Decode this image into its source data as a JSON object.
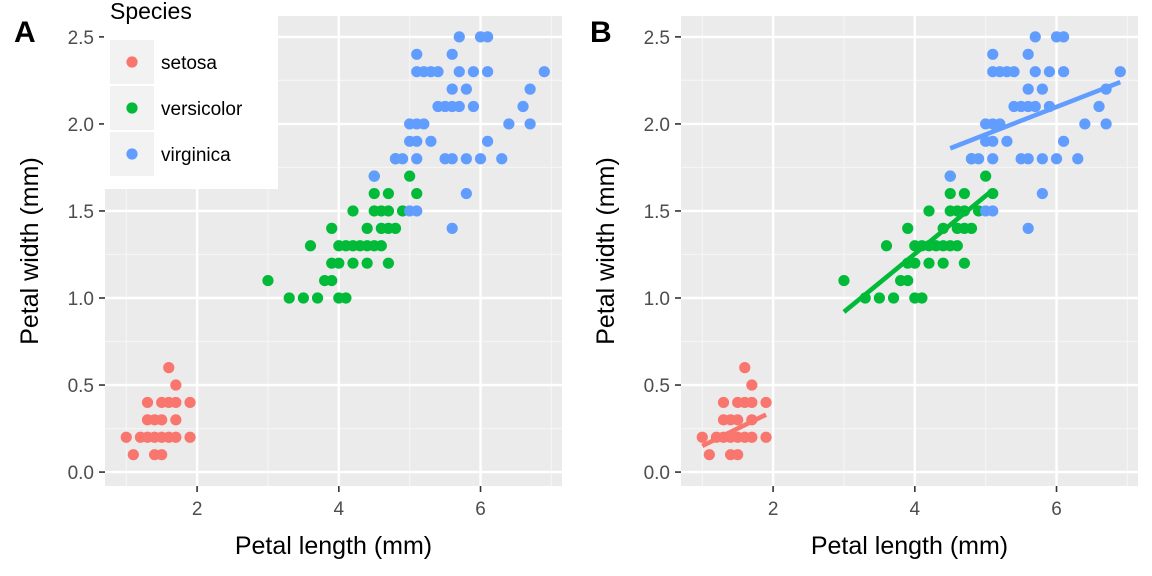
{
  "chart_data": [
    {
      "type": "scatter",
      "panel_tag": "A",
      "xlabel": "Petal length (mm)",
      "ylabel": "Petal width (mm)",
      "xlim": [
        0.7,
        7.15
      ],
      "ylim": [
        -0.08,
        2.62
      ],
      "xticks": [
        2,
        4,
        6
      ],
      "yticks": [
        0.0,
        0.5,
        1.0,
        1.5,
        2.0,
        2.5
      ],
      "xtick_labels": [
        "2",
        "4",
        "6"
      ],
      "ytick_labels": [
        "0.0",
        "0.5",
        "1.0",
        "1.5",
        "2.0",
        "2.5"
      ],
      "grid": true,
      "legend": {
        "title": "Species",
        "placement": "top-left",
        "entries": [
          "setosa",
          "versicolor",
          "virginica"
        ]
      },
      "series": [
        {
          "name": "setosa",
          "color": "#F8766D",
          "points": [
            [
              1.0,
              0.2
            ],
            [
              1.1,
              0.1
            ],
            [
              1.2,
              0.2
            ],
            [
              1.3,
              0.2
            ],
            [
              1.3,
              0.3
            ],
            [
              1.3,
              0.4
            ],
            [
              1.4,
              0.1
            ],
            [
              1.4,
              0.2
            ],
            [
              1.4,
              0.3
            ],
            [
              1.5,
              0.1
            ],
            [
              1.5,
              0.2
            ],
            [
              1.5,
              0.3
            ],
            [
              1.5,
              0.4
            ],
            [
              1.6,
              0.2
            ],
            [
              1.6,
              0.4
            ],
            [
              1.6,
              0.6
            ],
            [
              1.7,
              0.2
            ],
            [
              1.7,
              0.3
            ],
            [
              1.7,
              0.4
            ],
            [
              1.7,
              0.5
            ],
            [
              1.9,
              0.2
            ],
            [
              1.9,
              0.4
            ]
          ]
        },
        {
          "name": "versicolor",
          "color": "#00BA38",
          "points": [
            [
              3.0,
              1.1
            ],
            [
              3.3,
              1.0
            ],
            [
              3.5,
              1.0
            ],
            [
              3.6,
              1.3
            ],
            [
              3.7,
              1.0
            ],
            [
              3.8,
              1.1
            ],
            [
              3.9,
              1.1
            ],
            [
              3.9,
              1.2
            ],
            [
              3.9,
              1.4
            ],
            [
              4.0,
              1.0
            ],
            [
              4.0,
              1.2
            ],
            [
              4.0,
              1.3
            ],
            [
              4.1,
              1.0
            ],
            [
              4.1,
              1.3
            ],
            [
              4.2,
              1.2
            ],
            [
              4.2,
              1.3
            ],
            [
              4.2,
              1.5
            ],
            [
              4.3,
              1.3
            ],
            [
              4.4,
              1.2
            ],
            [
              4.4,
              1.3
            ],
            [
              4.4,
              1.4
            ],
            [
              4.5,
              1.3
            ],
            [
              4.5,
              1.5
            ],
            [
              4.5,
              1.6
            ],
            [
              4.5,
              1.7
            ],
            [
              4.6,
              1.3
            ],
            [
              4.6,
              1.4
            ],
            [
              4.6,
              1.5
            ],
            [
              4.7,
              1.2
            ],
            [
              4.7,
              1.4
            ],
            [
              4.7,
              1.5
            ],
            [
              4.7,
              1.6
            ],
            [
              4.8,
              1.4
            ],
            [
              4.8,
              1.8
            ],
            [
              4.9,
              1.5
            ],
            [
              5.0,
              1.7
            ],
            [
              5.1,
              1.6
            ]
          ]
        },
        {
          "name": "virginica",
          "color": "#619CFF",
          "points": [
            [
              4.5,
              1.7
            ],
            [
              4.8,
              1.8
            ],
            [
              4.9,
              1.8
            ],
            [
              5.0,
              1.5
            ],
            [
              5.0,
              1.9
            ],
            [
              5.0,
              2.0
            ],
            [
              5.1,
              1.5
            ],
            [
              5.1,
              1.8
            ],
            [
              5.1,
              1.9
            ],
            [
              5.1,
              2.0
            ],
            [
              5.1,
              2.3
            ],
            [
              5.1,
              2.4
            ],
            [
              5.2,
              2.0
            ],
            [
              5.2,
              2.3
            ],
            [
              5.3,
              1.9
            ],
            [
              5.3,
              2.3
            ],
            [
              5.4,
              2.1
            ],
            [
              5.4,
              2.3
            ],
            [
              5.5,
              1.8
            ],
            [
              5.5,
              2.1
            ],
            [
              5.6,
              1.4
            ],
            [
              5.6,
              1.8
            ],
            [
              5.6,
              2.1
            ],
            [
              5.6,
              2.2
            ],
            [
              5.6,
              2.4
            ],
            [
              5.7,
              2.1
            ],
            [
              5.7,
              2.3
            ],
            [
              5.7,
              2.5
            ],
            [
              5.8,
              1.6
            ],
            [
              5.8,
              1.8
            ],
            [
              5.8,
              2.2
            ],
            [
              5.9,
              2.1
            ],
            [
              5.9,
              2.3
            ],
            [
              6.0,
              1.8
            ],
            [
              6.0,
              2.5
            ],
            [
              6.1,
              1.9
            ],
            [
              6.1,
              2.3
            ],
            [
              6.1,
              2.5
            ],
            [
              6.3,
              1.8
            ],
            [
              6.4,
              2.0
            ],
            [
              6.6,
              2.1
            ],
            [
              6.7,
              2.0
            ],
            [
              6.7,
              2.2
            ],
            [
              6.9,
              2.3
            ]
          ]
        }
      ]
    },
    {
      "type": "scatter",
      "panel_tag": "B",
      "xlabel": "Petal length (mm)",
      "ylabel": "Petal width (mm)",
      "xlim": [
        0.7,
        7.15
      ],
      "ylim": [
        -0.08,
        2.62
      ],
      "xticks": [
        2,
        4,
        6
      ],
      "yticks": [
        0.0,
        0.5,
        1.0,
        1.5,
        2.0,
        2.5
      ],
      "xtick_labels": [
        "2",
        "4",
        "6"
      ],
      "ytick_labels": [
        "0.0",
        "0.5",
        "1.0",
        "1.5",
        "2.0",
        "2.5"
      ],
      "grid": true,
      "series": [
        {
          "name": "setosa",
          "color": "#F8766D",
          "points": [
            [
              1.0,
              0.2
            ],
            [
              1.1,
              0.1
            ],
            [
              1.2,
              0.2
            ],
            [
              1.3,
              0.2
            ],
            [
              1.3,
              0.3
            ],
            [
              1.3,
              0.4
            ],
            [
              1.4,
              0.1
            ],
            [
              1.4,
              0.2
            ],
            [
              1.4,
              0.3
            ],
            [
              1.5,
              0.1
            ],
            [
              1.5,
              0.2
            ],
            [
              1.5,
              0.3
            ],
            [
              1.5,
              0.4
            ],
            [
              1.6,
              0.2
            ],
            [
              1.6,
              0.4
            ],
            [
              1.6,
              0.6
            ],
            [
              1.7,
              0.2
            ],
            [
              1.7,
              0.3
            ],
            [
              1.7,
              0.4
            ],
            [
              1.7,
              0.5
            ],
            [
              1.9,
              0.2
            ],
            [
              1.9,
              0.4
            ]
          ],
          "fit_line": [
            [
              1.0,
              0.15
            ],
            [
              1.9,
              0.33
            ]
          ]
        },
        {
          "name": "versicolor",
          "color": "#00BA38",
          "points": [
            [
              3.0,
              1.1
            ],
            [
              3.3,
              1.0
            ],
            [
              3.5,
              1.0
            ],
            [
              3.6,
              1.3
            ],
            [
              3.7,
              1.0
            ],
            [
              3.8,
              1.1
            ],
            [
              3.9,
              1.1
            ],
            [
              3.9,
              1.2
            ],
            [
              3.9,
              1.4
            ],
            [
              4.0,
              1.0
            ],
            [
              4.0,
              1.2
            ],
            [
              4.0,
              1.3
            ],
            [
              4.1,
              1.0
            ],
            [
              4.1,
              1.3
            ],
            [
              4.2,
              1.2
            ],
            [
              4.2,
              1.3
            ],
            [
              4.2,
              1.5
            ],
            [
              4.3,
              1.3
            ],
            [
              4.4,
              1.2
            ],
            [
              4.4,
              1.3
            ],
            [
              4.4,
              1.4
            ],
            [
              4.5,
              1.3
            ],
            [
              4.5,
              1.5
            ],
            [
              4.5,
              1.6
            ],
            [
              4.5,
              1.7
            ],
            [
              4.6,
              1.3
            ],
            [
              4.6,
              1.4
            ],
            [
              4.6,
              1.5
            ],
            [
              4.7,
              1.2
            ],
            [
              4.7,
              1.4
            ],
            [
              4.7,
              1.5
            ],
            [
              4.7,
              1.6
            ],
            [
              4.8,
              1.4
            ],
            [
              4.8,
              1.8
            ],
            [
              4.9,
              1.5
            ],
            [
              5.0,
              1.7
            ],
            [
              5.1,
              1.6
            ]
          ],
          "fit_line": [
            [
              3.0,
              0.92
            ],
            [
              5.1,
              1.62
            ]
          ]
        },
        {
          "name": "virginica",
          "color": "#619CFF",
          "points": [
            [
              4.5,
              1.7
            ],
            [
              4.8,
              1.8
            ],
            [
              4.9,
              1.8
            ],
            [
              5.0,
              1.5
            ],
            [
              5.0,
              1.9
            ],
            [
              5.0,
              2.0
            ],
            [
              5.1,
              1.5
            ],
            [
              5.1,
              1.8
            ],
            [
              5.1,
              1.9
            ],
            [
              5.1,
              2.0
            ],
            [
              5.1,
              2.3
            ],
            [
              5.1,
              2.4
            ],
            [
              5.2,
              2.0
            ],
            [
              5.2,
              2.3
            ],
            [
              5.3,
              1.9
            ],
            [
              5.3,
              2.3
            ],
            [
              5.4,
              2.1
            ],
            [
              5.4,
              2.3
            ],
            [
              5.5,
              1.8
            ],
            [
              5.5,
              2.1
            ],
            [
              5.6,
              1.4
            ],
            [
              5.6,
              1.8
            ],
            [
              5.6,
              2.1
            ],
            [
              5.6,
              2.2
            ],
            [
              5.6,
              2.4
            ],
            [
              5.7,
              2.1
            ],
            [
              5.7,
              2.3
            ],
            [
              5.7,
              2.5
            ],
            [
              5.8,
              1.6
            ],
            [
              5.8,
              1.8
            ],
            [
              5.8,
              2.2
            ],
            [
              5.9,
              2.1
            ],
            [
              5.9,
              2.3
            ],
            [
              6.0,
              1.8
            ],
            [
              6.0,
              2.5
            ],
            [
              6.1,
              1.9
            ],
            [
              6.1,
              2.3
            ],
            [
              6.1,
              2.5
            ],
            [
              6.3,
              1.8
            ],
            [
              6.4,
              2.0
            ],
            [
              6.6,
              2.1
            ],
            [
              6.7,
              2.0
            ],
            [
              6.7,
              2.2
            ],
            [
              6.9,
              2.3
            ]
          ],
          "fit_line": [
            [
              4.5,
              1.86
            ],
            [
              6.9,
              2.24
            ]
          ]
        }
      ]
    }
  ]
}
